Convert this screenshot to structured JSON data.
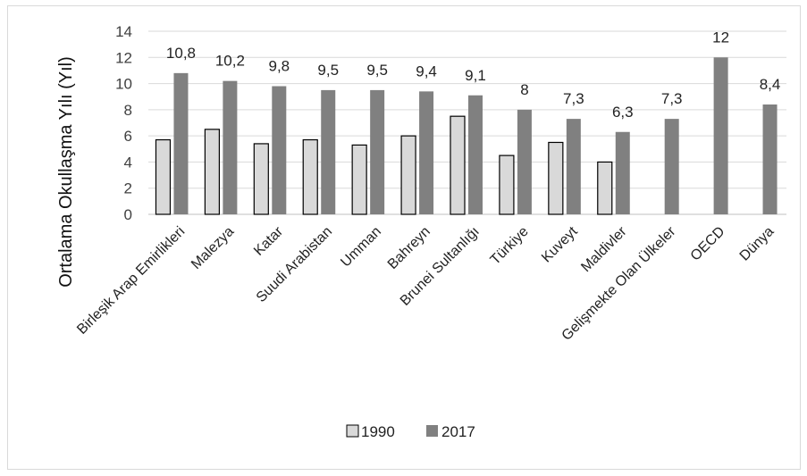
{
  "chart_data": {
    "type": "bar",
    "title": "",
    "xlabel": "",
    "ylabel": "Ortalama Okullaşma Yılı (Yıl)",
    "ylim": [
      0,
      14
    ],
    "yticks": [
      "0",
      "2",
      "4",
      "6",
      "8",
      "10",
      "12",
      "14"
    ],
    "grid": true,
    "legend_position": "bottom",
    "categories": [
      "Birleşik Arap Emirlikleri",
      "Malezya",
      "Katar",
      "Suudi Arabistan",
      "Umman",
      "Bahreyn",
      "Brunei Sultanlığı",
      "Türkiye",
      "Kuveyt",
      "Maldivler",
      "Gelişmekte Olan Ülkeler",
      "OECD",
      "Dünya"
    ],
    "series": [
      {
        "name": "1990",
        "color": "#d9d9d9",
        "values": [
          5.7,
          6.5,
          5.4,
          5.7,
          5.3,
          6.0,
          7.5,
          4.5,
          5.5,
          4.0,
          null,
          null,
          null
        ]
      },
      {
        "name": "2017",
        "color": "#808080",
        "values": [
          10.8,
          10.2,
          9.8,
          9.5,
          9.5,
          9.4,
          9.1,
          8.0,
          7.3,
          6.3,
          7.3,
          12.0,
          8.4
        ],
        "data_labels": [
          "10,8",
          "10,2",
          "9,8",
          "9,5",
          "9,5",
          "9,4",
          "9,1",
          "8",
          "7,3",
          "6,3",
          "7,3",
          "12",
          "8,4"
        ]
      }
    ]
  }
}
